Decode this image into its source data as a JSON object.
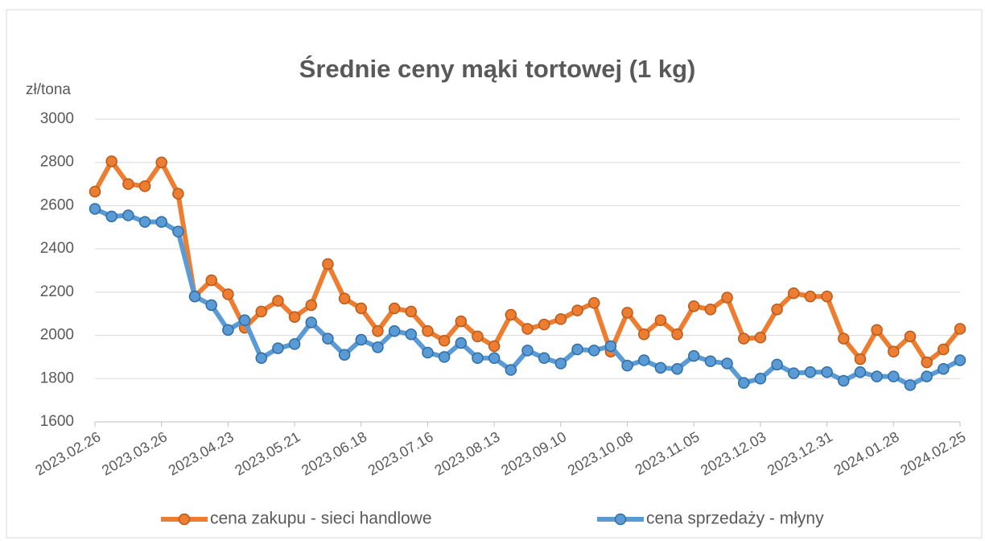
{
  "chart_data": {
    "type": "line",
    "title": "Średnie ceny mąki tortowej (1 kg)",
    "y_label": "zł/tona",
    "categories": [
      "2023.02.26",
      null,
      null,
      null,
      "2023.03.26",
      null,
      null,
      null,
      "2023.04.23",
      null,
      null,
      null,
      "2023.05.21",
      null,
      null,
      null,
      "2023.06.18",
      null,
      null,
      null,
      "2023.07.16",
      null,
      null,
      null,
      "2023.08.13",
      null,
      null,
      null,
      "2023.09.10",
      null,
      null,
      null,
      "2023.10.08",
      null,
      null,
      null,
      "2023.11.05",
      null,
      null,
      null,
      "2023.12.03",
      null,
      null,
      null,
      "2023.12.31",
      null,
      null,
      null,
      "2024.01.28",
      null,
      null,
      null,
      "2024.02.25"
    ],
    "series": [
      {
        "name": "cena zakupu - sieci handlowe",
        "color": "#ed7d31",
        "values": [
          2665,
          2805,
          2700,
          2690,
          2800,
          2655,
          2180,
          2255,
          2190,
          2035,
          2110,
          2160,
          2085,
          2140,
          2330,
          2170,
          2125,
          2020,
          2125,
          2110,
          2020,
          1975,
          2065,
          1995,
          1950,
          2095,
          2030,
          2050,
          2075,
          2115,
          2150,
          1925,
          2105,
          2005,
          2070,
          2005,
          2135,
          2120,
          2175,
          1985,
          1990,
          2120,
          2195,
          2180,
          2180,
          1985,
          1890,
          2025,
          1925,
          1995,
          1875,
          1935,
          2030
        ]
      },
      {
        "name": "cena sprzedaży - młyny",
        "color": "#5b9bd5",
        "values": [
          2585,
          2550,
          2555,
          2525,
          2525,
          2480,
          2180,
          2140,
          2025,
          2070,
          1895,
          1940,
          1960,
          2060,
          1985,
          1910,
          1980,
          1945,
          2020,
          2005,
          1920,
          1900,
          1965,
          1895,
          1895,
          1840,
          1930,
          1895,
          1870,
          1935,
          1930,
          1950,
          1860,
          1885,
          1850,
          1845,
          1905,
          1880,
          1870,
          1780,
          1800,
          1865,
          1825,
          1830,
          1830,
          1790,
          1830,
          1810,
          1810,
          1770,
          1810,
          1845,
          1885
        ]
      }
    ],
    "ylim": [
      1600,
      3000
    ],
    "yticks": [
      1600,
      1800,
      2000,
      2200,
      2400,
      2600,
      2800,
      3000
    ],
    "grid": true,
    "legend": "bottom"
  }
}
